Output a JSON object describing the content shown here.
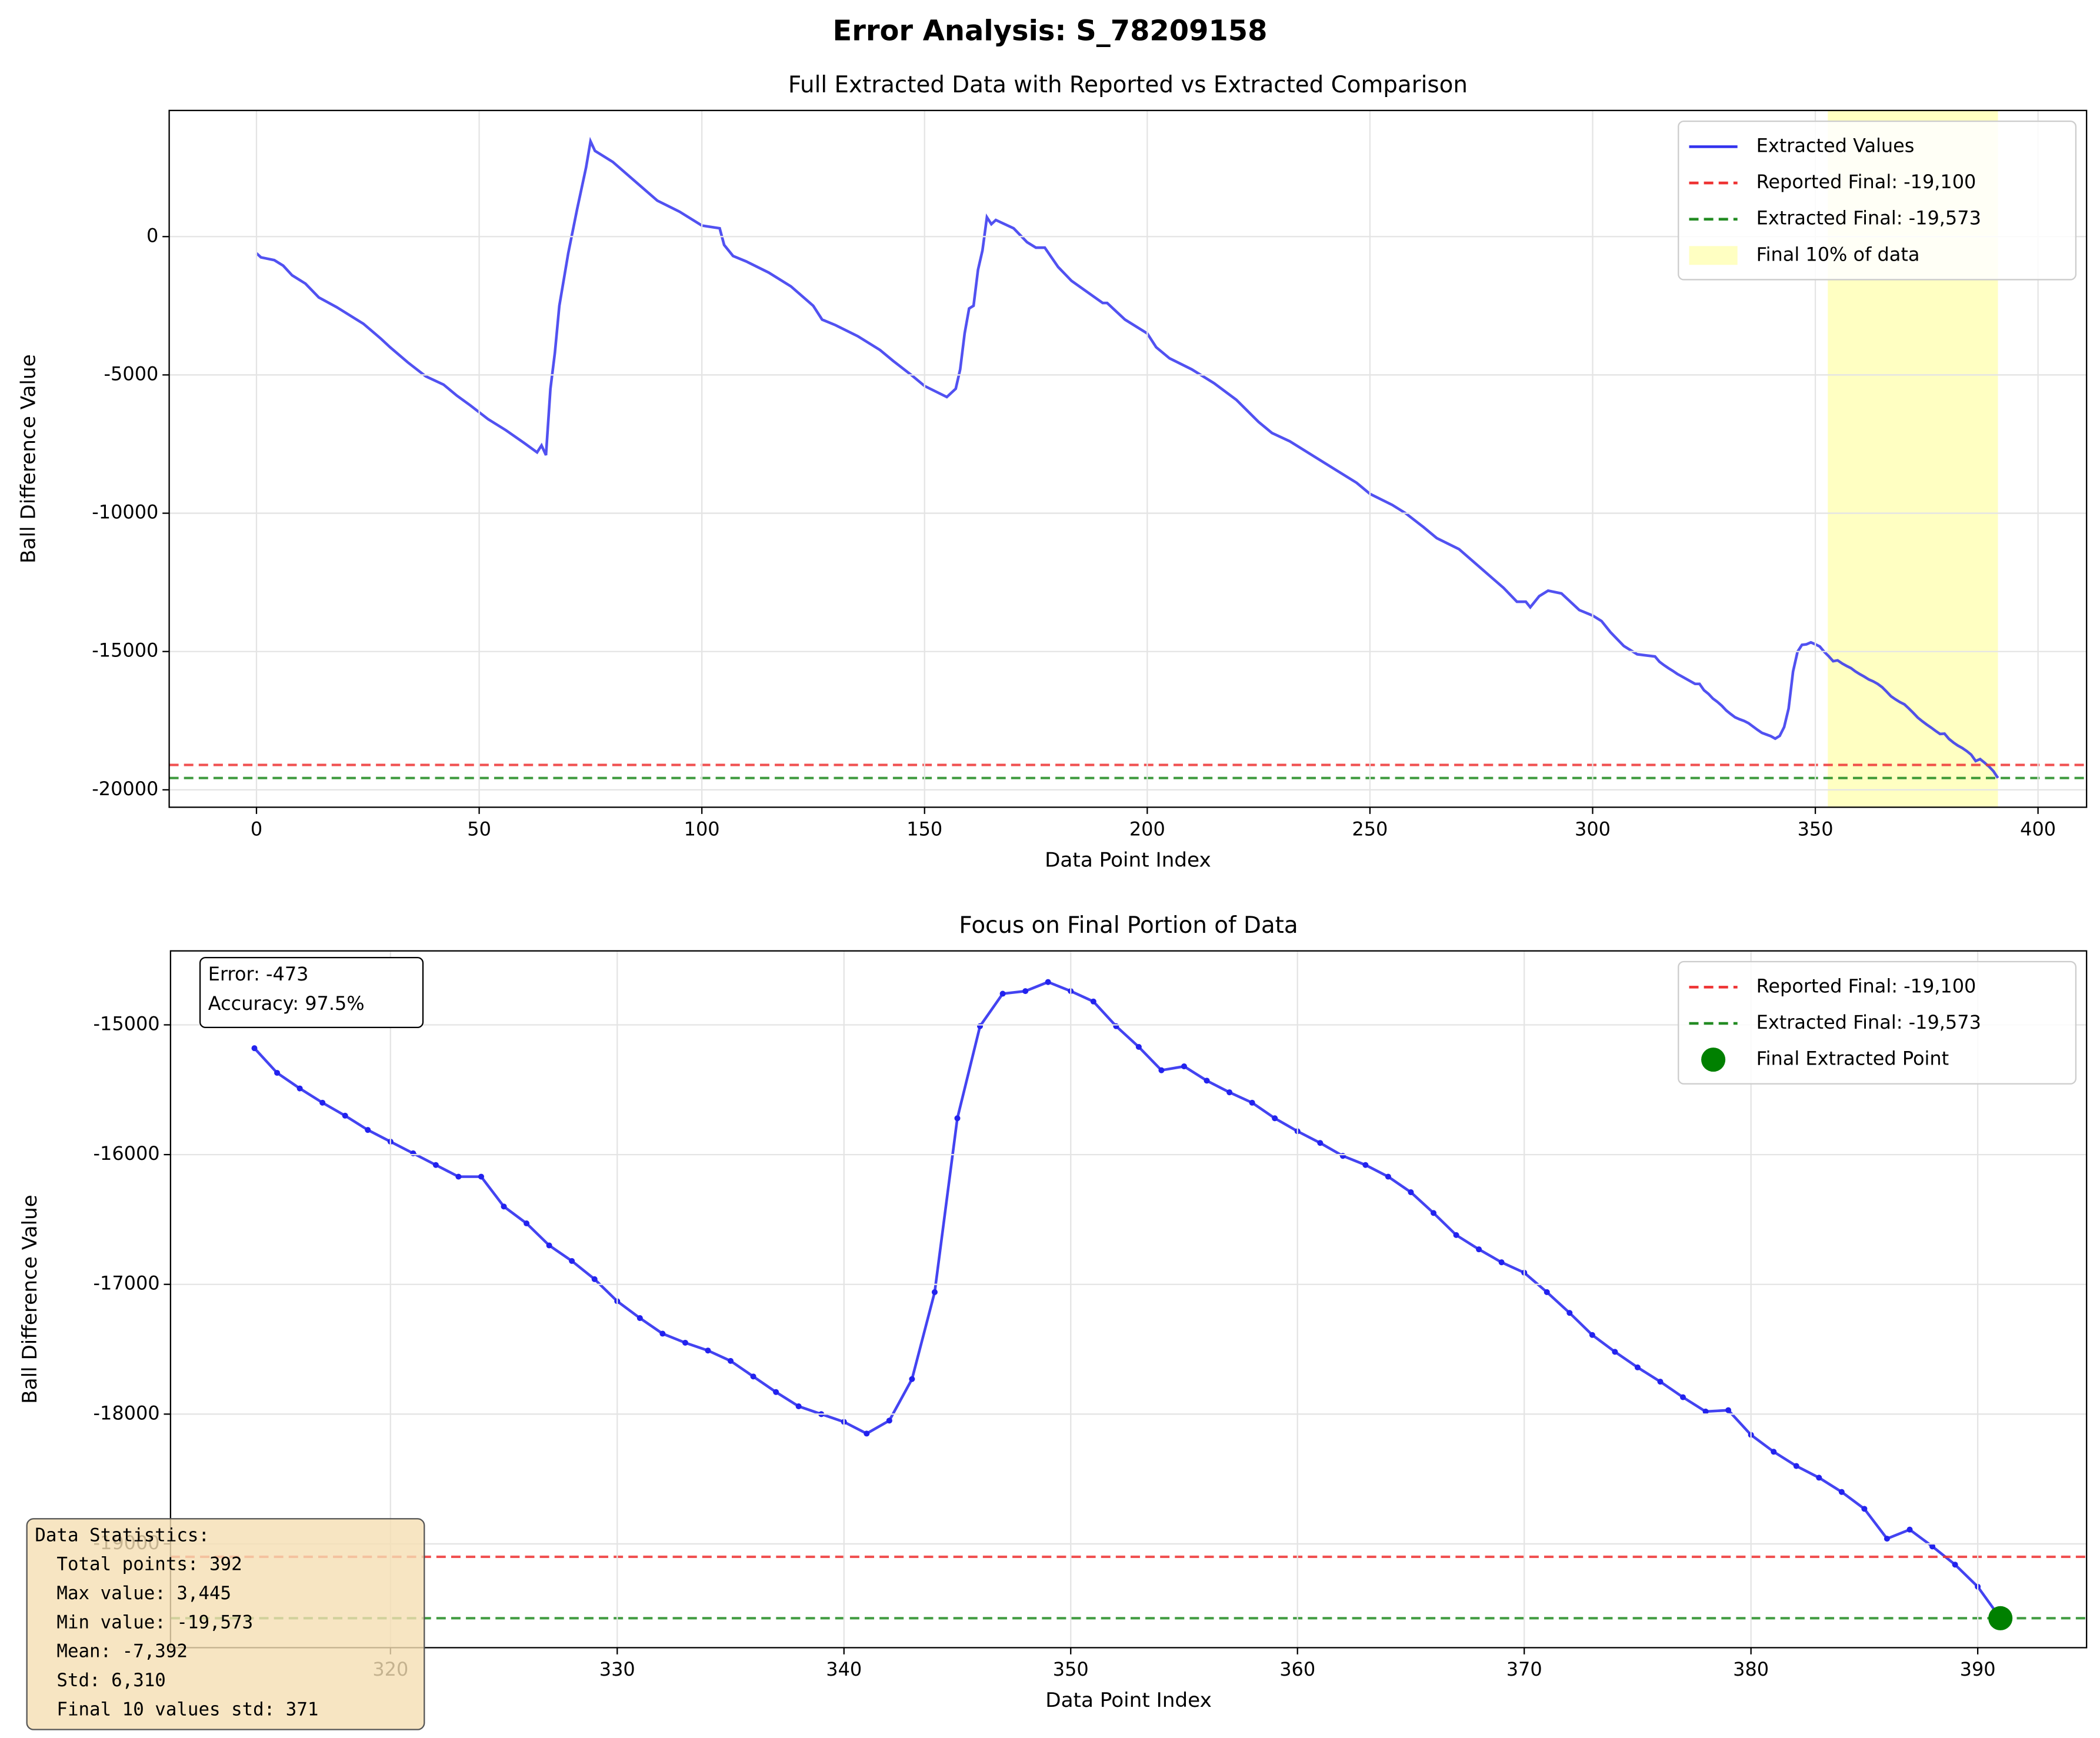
{
  "title": "Error Analysis: S_78209158",
  "chart_data": [
    {
      "type": "line",
      "title": "Full Extracted Data with Reported vs Extracted Comparison",
      "x_label": "Data Point Index",
      "y_label": "Ball Difference Value",
      "xlim": [
        -19.6,
        410.9
      ],
      "ylim": [
        -20630,
        4560
      ],
      "xticks": [
        0,
        50,
        100,
        150,
        200,
        250,
        300,
        350,
        400
      ],
      "yticks": [
        -20000,
        -15000,
        -10000,
        -5000,
        0
      ],
      "grid": true,
      "legend": "upper right",
      "series": [
        {
          "name": "Extracted Values",
          "color": "#3333ee",
          "markers": false,
          "x": [
            0,
            1,
            4,
            6,
            8,
            11,
            14,
            18,
            22,
            24,
            28,
            30,
            34,
            38,
            42,
            45,
            48,
            52,
            56,
            60,
            63,
            64,
            65,
            66,
            67,
            68,
            70,
            72,
            74,
            75,
            76,
            80,
            85,
            90,
            95,
            100,
            104,
            105,
            107,
            110,
            115,
            120,
            125,
            127,
            130,
            135,
            140,
            143,
            147,
            150,
            155,
            157,
            158,
            159,
            160,
            161,
            162,
            163,
            164,
            165,
            166,
            170,
            173,
            175,
            177,
            180,
            183,
            190,
            191,
            195,
            200,
            202,
            205,
            210,
            215,
            220,
            225,
            228,
            232,
            238,
            243,
            247,
            250,
            255,
            258,
            262,
            265,
            270,
            275,
            280,
            283,
            285,
            286,
            288,
            290,
            293,
            297,
            300,
            302,
            304,
            307,
            310,
            314,
            315,
            316,
            317,
            318,
            319,
            320,
            321,
            322,
            323,
            324,
            325,
            326,
            327,
            328,
            329,
            330,
            331,
            332,
            333,
            334,
            335,
            336,
            337,
            338,
            339,
            340,
            341,
            342,
            343,
            344,
            345,
            346,
            347,
            348,
            349,
            350,
            351,
            352,
            353,
            354,
            355,
            356,
            357,
            358,
            359,
            360,
            361,
            362,
            363,
            364,
            365,
            366,
            367,
            368,
            369,
            370,
            371,
            372,
            373,
            374,
            375,
            376,
            377,
            378,
            379,
            380,
            381,
            382,
            383,
            384,
            385,
            386,
            387,
            388,
            389,
            390,
            391
          ],
          "values": [
            -600,
            -750,
            -850,
            -1050,
            -1400,
            -1700,
            -2200,
            -2550,
            -2950,
            -3150,
            -3700,
            -4000,
            -4550,
            -5050,
            -5350,
            -5750,
            -6100,
            -6600,
            -7000,
            -7450,
            -7800,
            -7550,
            -7900,
            -5500,
            -4200,
            -2500,
            -600,
            1000,
            2500,
            3445,
            3100,
            2700,
            2000,
            1300,
            900,
            400,
            300,
            -300,
            -700,
            -900,
            -1300,
            -1800,
            -2500,
            -3000,
            -3200,
            -3600,
            -4100,
            -4500,
            -5000,
            -5400,
            -5800,
            -5500,
            -4800,
            -3500,
            -2600,
            -2500,
            -1200,
            -500,
            700,
            450,
            600,
            300,
            -200,
            -400,
            -400,
            -1100,
            -1600,
            -2400,
            -2400,
            -3000,
            -3500,
            -4000,
            -4400,
            -4800,
            -5300,
            -5900,
            -6700,
            -7100,
            -7400,
            -8000,
            -8500,
            -8900,
            -9300,
            -9700,
            -10000,
            -10500,
            -10900,
            -11300,
            -12000,
            -12700,
            -13200,
            -13200,
            -13400,
            -13000,
            -12800,
            -12900,
            -13500,
            -13700,
            -13900,
            -14300,
            -14800,
            -15100,
            -15180,
            -15370,
            -15490,
            -15600,
            -15700,
            -15810,
            -15900,
            -15990,
            -16080,
            -16170,
            -16170,
            -16400,
            -16530,
            -16700,
            -16820,
            -16960,
            -17130,
            -17260,
            -17380,
            -17450,
            -17510,
            -17590,
            -17710,
            -17830,
            -17940,
            -18000,
            -18060,
            -18150,
            -18050,
            -17730,
            -17060,
            -15720,
            -15010,
            -14760,
            -14740,
            -14670,
            -14740,
            -14820,
            -15010,
            -15170,
            -15350,
            -15320,
            -15430,
            -15520,
            -15600,
            -15720,
            -15820,
            -15910,
            -16010,
            -16080,
            -16170,
            -16290,
            -16450,
            -16620,
            -16730,
            -16830,
            -16910,
            -17060,
            -17220,
            -17390,
            -17520,
            -17640,
            -17750,
            -17870,
            -17980,
            -17970,
            -18160,
            -18290,
            -18400,
            -18490,
            -18600,
            -18730,
            -18960,
            -18890,
            -19020,
            -19160,
            -19330,
            -19573
          ]
        }
      ],
      "hlines": [
        {
          "name": "Reported Final: -19,100",
          "value": -19100,
          "color": "#ee3333"
        },
        {
          "name": "Extracted Final: -19,573",
          "value": -19573,
          "color": "#228b22"
        }
      ],
      "span": {
        "name": "Final 10% of data",
        "x0": 352.8,
        "x1": 391,
        "color": "#ffff99"
      }
    },
    {
      "type": "line",
      "title": "Focus on Final Portion of Data",
      "x_label": "Data Point Index",
      "y_label": "Ball Difference Value",
      "xlim": [
        310.3,
        394.8
      ],
      "ylim": [
        -19800,
        -14430
      ],
      "xticks": [
        320,
        330,
        340,
        350,
        360,
        370,
        380,
        390
      ],
      "yticks": [
        -19000,
        -18000,
        -17000,
        -16000,
        -15000
      ],
      "grid": true,
      "legend": "upper right",
      "series": [
        {
          "color": "#2222ee",
          "markers": true,
          "x": [
            314,
            315,
            316,
            317,
            318,
            319,
            320,
            321,
            322,
            323,
            324,
            325,
            326,
            327,
            328,
            329,
            330,
            331,
            332,
            333,
            334,
            335,
            336,
            337,
            338,
            339,
            340,
            341,
            342,
            343,
            344,
            345,
            346,
            347,
            348,
            349,
            350,
            351,
            352,
            353,
            354,
            355,
            356,
            357,
            358,
            359,
            360,
            361,
            362,
            363,
            364,
            365,
            366,
            367,
            368,
            369,
            370,
            371,
            372,
            373,
            374,
            375,
            376,
            377,
            378,
            379,
            380,
            381,
            382,
            383,
            384,
            385,
            386,
            387,
            388,
            389,
            390,
            391
          ],
          "values": [
            -15180,
            -15370,
            -15490,
            -15600,
            -15700,
            -15810,
            -15900,
            -15990,
            -16080,
            -16170,
            -16170,
            -16400,
            -16530,
            -16700,
            -16820,
            -16960,
            -17130,
            -17260,
            -17380,
            -17450,
            -17510,
            -17590,
            -17710,
            -17830,
            -17940,
            -18000,
            -18060,
            -18150,
            -18050,
            -17730,
            -17060,
            -15720,
            -15010,
            -14760,
            -14740,
            -14670,
            -14740,
            -14820,
            -15010,
            -15170,
            -15350,
            -15320,
            -15430,
            -15520,
            -15600,
            -15720,
            -15820,
            -15910,
            -16010,
            -16080,
            -16170,
            -16290,
            -16450,
            -16620,
            -16730,
            -16830,
            -16910,
            -17060,
            -17220,
            -17390,
            -17520,
            -17640,
            -17750,
            -17870,
            -17980,
            -17970,
            -18160,
            -18290,
            -18400,
            -18490,
            -18600,
            -18730,
            -18960,
            -18890,
            -19020,
            -19160,
            -19330,
            -19573
          ]
        }
      ],
      "hlines": [
        {
          "name": "Reported Final: -19,100",
          "value": -19100,
          "color": "#ee3333"
        },
        {
          "name": "Extracted Final: -19,573",
          "value": -19573,
          "color": "#228b22"
        }
      ],
      "point": {
        "name": "Final Extracted Point",
        "x": 391,
        "value": -19573,
        "color": "#008000"
      },
      "annotation": [
        "Error: -473",
        "Accuracy: 97.5%"
      ]
    }
  ],
  "stats": [
    "Data Statistics:",
    "  Total points: 392",
    "  Max value: 3,445",
    "  Min value: -19,573",
    "  Mean: -7,392",
    "  Std: 6,310",
    "  Final 10 values std: 371"
  ]
}
